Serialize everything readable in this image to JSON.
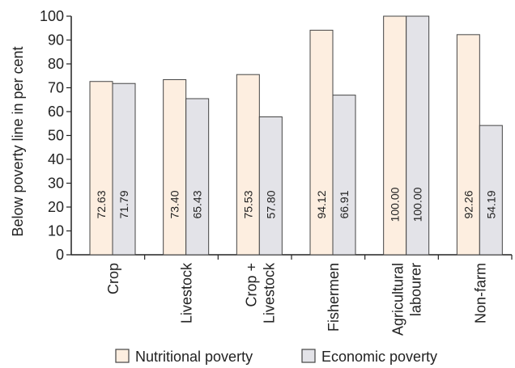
{
  "chart_data": {
    "type": "bar",
    "ylabel": "Below poverty line in per cent",
    "ylim": [
      0,
      100
    ],
    "yticks": [
      0,
      10,
      20,
      30,
      40,
      50,
      60,
      70,
      80,
      90,
      100
    ],
    "categories": [
      [
        "Crop"
      ],
      [
        "Livestock"
      ],
      [
        "Crop +",
        "Livestock"
      ],
      [
        "Fishermen"
      ],
      [
        "Agricultural",
        "labourer"
      ],
      [
        "Non-farm"
      ]
    ],
    "series": [
      {
        "name": "Nutritional poverty",
        "color": "#fdeee0",
        "values": [
          72.63,
          73.4,
          75.53,
          94.12,
          100.0,
          92.26
        ],
        "labels": [
          "72.63",
          "73.40",
          "75.53",
          "94.12",
          "100.00",
          "92.26"
        ]
      },
      {
        "name": "Economic poverty",
        "color": "#e3e3e8",
        "values": [
          71.79,
          65.43,
          57.8,
          66.91,
          100.0,
          54.19
        ],
        "labels": [
          "71.79",
          "65.43",
          "57.80",
          "66.91",
          "100.00",
          "54.19"
        ]
      }
    ],
    "legend": "bottom"
  }
}
